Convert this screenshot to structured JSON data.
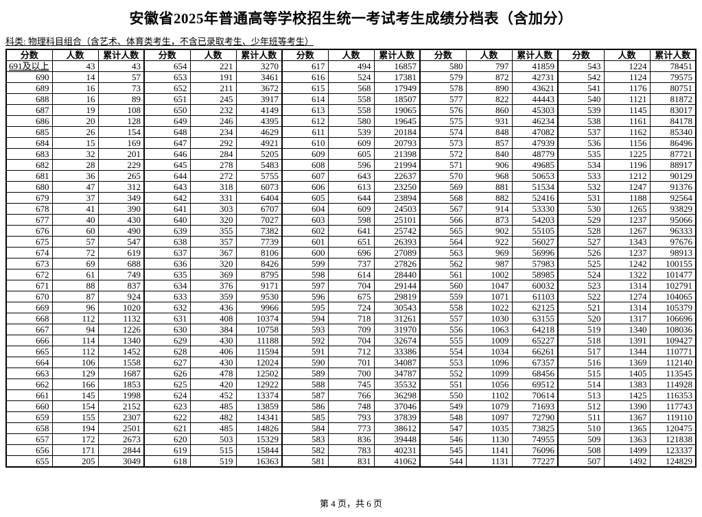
{
  "title": "安徽省2025年普通高等学校招生统一考试考生成绩分档表（含加分）",
  "subtitle": "科类: 物理科目组合（含艺术、体育类考生，不含已录取考生、少年班等考生）",
  "footer": {
    "page_text": "第 4 页，共 6 页"
  },
  "table": {
    "column_headers": [
      "分数",
      "人数",
      "累计人数"
    ],
    "groups": [
      {
        "rows": [
          [
            "691及以上",
            43,
            43
          ],
          [
            "690",
            14,
            57
          ],
          [
            "689",
            16,
            73
          ],
          [
            "688",
            16,
            89
          ],
          [
            "687",
            19,
            108
          ],
          [
            "686",
            20,
            128
          ],
          [
            "685",
            26,
            154
          ],
          [
            "684",
            15,
            169
          ],
          [
            "683",
            32,
            201
          ],
          [
            "682",
            28,
            229
          ],
          [
            "681",
            36,
            265
          ],
          [
            "680",
            47,
            312
          ],
          [
            "679",
            37,
            349
          ],
          [
            "678",
            41,
            390
          ],
          [
            "677",
            40,
            430
          ],
          [
            "676",
            60,
            490
          ],
          [
            "675",
            57,
            547
          ],
          [
            "674",
            72,
            619
          ],
          [
            "673",
            69,
            688
          ],
          [
            "672",
            61,
            749
          ],
          [
            "671",
            88,
            837
          ],
          [
            "670",
            87,
            924
          ],
          [
            "669",
            96,
            1020
          ],
          [
            "668",
            112,
            1132
          ],
          [
            "667",
            94,
            1226
          ],
          [
            "666",
            114,
            1340
          ],
          [
            "665",
            112,
            1452
          ],
          [
            "664",
            106,
            1558
          ],
          [
            "663",
            129,
            1687
          ],
          [
            "662",
            166,
            1853
          ],
          [
            "661",
            145,
            1998
          ],
          [
            "660",
            154,
            2152
          ],
          [
            "659",
            155,
            2307
          ],
          [
            "658",
            194,
            2501
          ],
          [
            "657",
            172,
            2673
          ],
          [
            "656",
            171,
            2844
          ],
          [
            "655",
            205,
            3049
          ]
        ]
      },
      {
        "rows": [
          [
            "654",
            221,
            3270
          ],
          [
            "653",
            191,
            3461
          ],
          [
            "652",
            211,
            3672
          ],
          [
            "651",
            245,
            3917
          ],
          [
            "650",
            232,
            4149
          ],
          [
            "649",
            246,
            4395
          ],
          [
            "648",
            234,
            4629
          ],
          [
            "647",
            292,
            4921
          ],
          [
            "646",
            284,
            5205
          ],
          [
            "645",
            278,
            5483
          ],
          [
            "644",
            272,
            5755
          ],
          [
            "643",
            318,
            6073
          ],
          [
            "642",
            331,
            6404
          ],
          [
            "641",
            303,
            6707
          ],
          [
            "640",
            320,
            7027
          ],
          [
            "639",
            355,
            7382
          ],
          [
            "638",
            357,
            7739
          ],
          [
            "637",
            367,
            8106
          ],
          [
            "636",
            320,
            8426
          ],
          [
            "635",
            369,
            8795
          ],
          [
            "634",
            376,
            9171
          ],
          [
            "633",
            359,
            9530
          ],
          [
            "632",
            436,
            9966
          ],
          [
            "631",
            408,
            10374
          ],
          [
            "630",
            384,
            10758
          ],
          [
            "629",
            430,
            11188
          ],
          [
            "628",
            406,
            11594
          ],
          [
            "627",
            430,
            12024
          ],
          [
            "626",
            478,
            12502
          ],
          [
            "625",
            420,
            12922
          ],
          [
            "624",
            452,
            13374
          ],
          [
            "623",
            485,
            13859
          ],
          [
            "622",
            482,
            14341
          ],
          [
            "621",
            485,
            14826
          ],
          [
            "620",
            503,
            15329
          ],
          [
            "619",
            515,
            15844
          ],
          [
            "618",
            519,
            16363
          ]
        ]
      },
      {
        "rows": [
          [
            "617",
            494,
            16857
          ],
          [
            "616",
            524,
            17381
          ],
          [
            "615",
            568,
            17949
          ],
          [
            "614",
            558,
            18507
          ],
          [
            "613",
            558,
            19065
          ],
          [
            "612",
            580,
            19645
          ],
          [
            "611",
            539,
            20184
          ],
          [
            "610",
            609,
            20793
          ],
          [
            "609",
            605,
            21398
          ],
          [
            "608",
            596,
            21994
          ],
          [
            "607",
            643,
            22637
          ],
          [
            "606",
            613,
            23250
          ],
          [
            "605",
            644,
            23894
          ],
          [
            "604",
            609,
            24503
          ],
          [
            "603",
            598,
            25101
          ],
          [
            "602",
            641,
            25742
          ],
          [
            "601",
            651,
            26393
          ],
          [
            "600",
            696,
            27089
          ],
          [
            "599",
            737,
            27826
          ],
          [
            "598",
            614,
            28440
          ],
          [
            "597",
            704,
            29144
          ],
          [
            "596",
            675,
            29819
          ],
          [
            "595",
            724,
            30543
          ],
          [
            "594",
            718,
            31261
          ],
          [
            "593",
            709,
            31970
          ],
          [
            "592",
            704,
            32674
          ],
          [
            "591",
            712,
            33386
          ],
          [
            "590",
            701,
            34087
          ],
          [
            "589",
            700,
            34787
          ],
          [
            "588",
            745,
            35532
          ],
          [
            "587",
            766,
            36298
          ],
          [
            "586",
            748,
            37046
          ],
          [
            "585",
            793,
            37839
          ],
          [
            "584",
            773,
            38612
          ],
          [
            "583",
            836,
            39448
          ],
          [
            "582",
            783,
            40231
          ],
          [
            "581",
            831,
            41062
          ]
        ]
      },
      {
        "rows": [
          [
            "580",
            797,
            41859
          ],
          [
            "579",
            872,
            42731
          ],
          [
            "578",
            890,
            43621
          ],
          [
            "577",
            822,
            44443
          ],
          [
            "576",
            860,
            45303
          ],
          [
            "575",
            931,
            46234
          ],
          [
            "574",
            848,
            47082
          ],
          [
            "573",
            857,
            47939
          ],
          [
            "572",
            840,
            48779
          ],
          [
            "571",
            906,
            49685
          ],
          [
            "570",
            968,
            50653
          ],
          [
            "569",
            881,
            51534
          ],
          [
            "568",
            882,
            52416
          ],
          [
            "567",
            914,
            53330
          ],
          [
            "566",
            873,
            54203
          ],
          [
            "565",
            902,
            55105
          ],
          [
            "564",
            922,
            56027
          ],
          [
            "563",
            969,
            56996
          ],
          [
            "562",
            987,
            57983
          ],
          [
            "561",
            1002,
            58985
          ],
          [
            "560",
            1047,
            60032
          ],
          [
            "559",
            1071,
            61103
          ],
          [
            "558",
            1022,
            62125
          ],
          [
            "557",
            1030,
            63155
          ],
          [
            "556",
            1063,
            64218
          ],
          [
            "555",
            1009,
            65227
          ],
          [
            "554",
            1034,
            66261
          ],
          [
            "553",
            1096,
            67357
          ],
          [
            "552",
            1099,
            68456
          ],
          [
            "551",
            1056,
            69512
          ],
          [
            "550",
            1102,
            70614
          ],
          [
            "549",
            1079,
            71693
          ],
          [
            "548",
            1097,
            72790
          ],
          [
            "547",
            1035,
            73825
          ],
          [
            "546",
            1130,
            74955
          ],
          [
            "545",
            1141,
            76096
          ],
          [
            "544",
            1131,
            77227
          ]
        ]
      },
      {
        "rows": [
          [
            "543",
            1224,
            78451
          ],
          [
            "542",
            1124,
            79575
          ],
          [
            "541",
            1176,
            80751
          ],
          [
            "540",
            1121,
            81872
          ],
          [
            "539",
            1145,
            83017
          ],
          [
            "538",
            1161,
            84178
          ],
          [
            "537",
            1162,
            85340
          ],
          [
            "536",
            1156,
            86496
          ],
          [
            "535",
            1225,
            87721
          ],
          [
            "534",
            1196,
            88917
          ],
          [
            "533",
            1212,
            90129
          ],
          [
            "532",
            1247,
            91376
          ],
          [
            "531",
            1188,
            92564
          ],
          [
            "530",
            1265,
            93829
          ],
          [
            "529",
            1237,
            95066
          ],
          [
            "528",
            1267,
            96333
          ],
          [
            "527",
            1343,
            97676
          ],
          [
            "526",
            1237,
            98913
          ],
          [
            "525",
            1242,
            100155
          ],
          [
            "524",
            1322,
            101477
          ],
          [
            "523",
            1314,
            102791
          ],
          [
            "522",
            1274,
            104065
          ],
          [
            "521",
            1314,
            105379
          ],
          [
            "520",
            1317,
            106696
          ],
          [
            "519",
            1340,
            108036
          ],
          [
            "518",
            1391,
            109427
          ],
          [
            "517",
            1344,
            110771
          ],
          [
            "516",
            1369,
            112140
          ],
          [
            "515",
            1405,
            113545
          ],
          [
            "514",
            1383,
            114928
          ],
          [
            "513",
            1425,
            116353
          ],
          [
            "512",
            1390,
            117743
          ],
          [
            "511",
            1367,
            119110
          ],
          [
            "510",
            1365,
            120475
          ],
          [
            "509",
            1363,
            121838
          ],
          [
            "508",
            1499,
            123337
          ],
          [
            "507",
            1492,
            124829
          ]
        ]
      }
    ]
  }
}
